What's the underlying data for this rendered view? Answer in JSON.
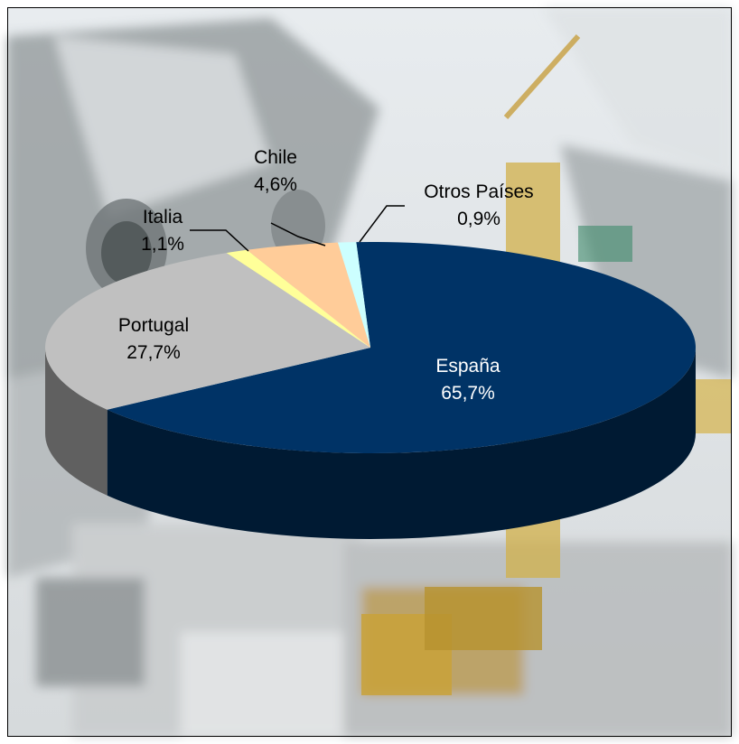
{
  "chart_data": {
    "type": "pie",
    "style": "3d",
    "background": "photo of tunnel construction site with crane and truck",
    "categories": [
      "España",
      "Portugal",
      "Italia",
      "Chile",
      "Otros Países"
    ],
    "values": [
      65.7,
      27.7,
      1.1,
      4.6,
      0.9
    ],
    "value_labels": [
      "65,7%",
      "27,7%",
      "1,1%",
      "4,6%",
      "0,9%"
    ],
    "colors": {
      "España": "#003366",
      "Portugal": "#C0C0C0",
      "Italia": "#FFFF99",
      "Chile": "#FFCC99",
      "Otros Países": "#CCFFFF"
    },
    "side_colors": {
      "España": "#001a33",
      "Portugal": "#606060",
      "Italia": "#808040",
      "Chile": "#806040",
      "Otros Países": "#668080"
    },
    "label_colors": {
      "España": "#ffffff",
      "Portugal": "#000000",
      "Italia": "#000000",
      "Chile": "#000000",
      "Otros Países": "#000000"
    },
    "legend": "none"
  }
}
